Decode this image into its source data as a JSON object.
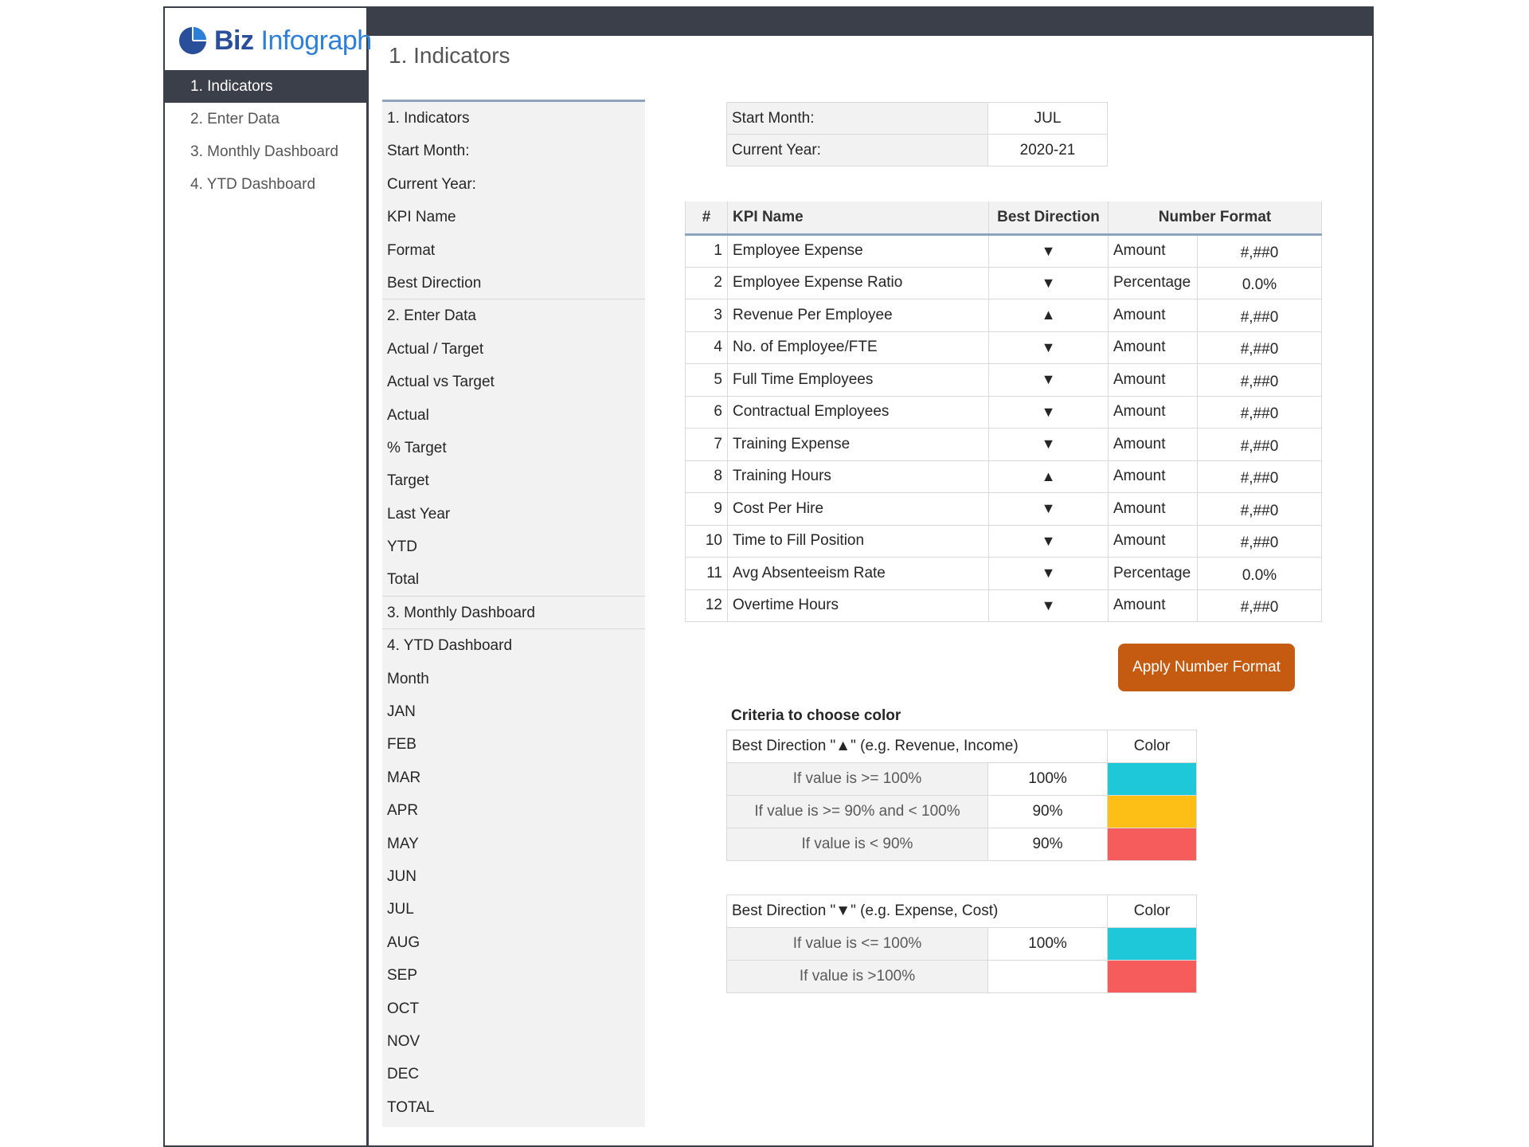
{
  "app": {
    "logo_biz": "Biz",
    "logo_infograph": "Infograph"
  },
  "sidebar": {
    "items": [
      {
        "label": "1. Indicators",
        "active": true
      },
      {
        "label": "2. Enter Data",
        "active": false
      },
      {
        "label": "3. Monthly Dashboard",
        "active": false
      },
      {
        "label": "4. YTD Dashboard",
        "active": false
      }
    ]
  },
  "page": {
    "title": "1. Indicators"
  },
  "indicator_list": [
    "1. Indicators",
    "Start Month:",
    "Current Year:",
    "KPI Name",
    "Format",
    "Best Direction",
    "2. Enter Data",
    "Actual / Target",
    "Actual vs Target",
    "Actual",
    "% Target",
    "Target",
    "Last Year",
    "YTD",
    "Total",
    "3. Monthly Dashboard",
    "4. YTD Dashboard",
    "Month",
    "JAN",
    "FEB",
    "MAR",
    "APR",
    "MAY",
    "JUN",
    "JUL",
    "AUG",
    "SEP",
    "OCT",
    "NOV",
    "DEC",
    "TOTAL"
  ],
  "settings": {
    "start_month_label": "Start Month:",
    "start_month_value": "JUL",
    "current_year_label": "Current Year:",
    "current_year_value": "2020-21"
  },
  "kpi_table": {
    "headers": {
      "num": "#",
      "name": "KPI Name",
      "direction": "Best Direction",
      "format": "Number Format"
    },
    "rows": [
      {
        "num": "1",
        "name": "Employee Expense",
        "direction": "▼",
        "format": "Amount",
        "pattern": "#,##0"
      },
      {
        "num": "2",
        "name": "Employee Expense Ratio",
        "direction": "▼",
        "format": "Percentage",
        "pattern": "0.0%"
      },
      {
        "num": "3",
        "name": "Revenue Per Employee",
        "direction": "▲",
        "format": "Amount",
        "pattern": "#,##0"
      },
      {
        "num": "4",
        "name": "No. of Employee/FTE",
        "direction": "▼",
        "format": "Amount",
        "pattern": "#,##0"
      },
      {
        "num": "5",
        "name": "Full Time Employees",
        "direction": "▼",
        "format": "Amount",
        "pattern": "#,##0"
      },
      {
        "num": "6",
        "name": "Contractual Employees",
        "direction": "▼",
        "format": "Amount",
        "pattern": "#,##0"
      },
      {
        "num": "7",
        "name": "Training Expense",
        "direction": "▼",
        "format": "Amount",
        "pattern": "#,##0"
      },
      {
        "num": "8",
        "name": "Training Hours",
        "direction": "▲",
        "format": "Amount",
        "pattern": "#,##0"
      },
      {
        "num": "9",
        "name": "Cost Per Hire",
        "direction": "▼",
        "format": "Amount",
        "pattern": "#,##0"
      },
      {
        "num": "10",
        "name": "Time to Fill Position",
        "direction": "▼",
        "format": "Amount",
        "pattern": "#,##0"
      },
      {
        "num": "11",
        "name": "Avg Absenteeism Rate",
        "direction": "▼",
        "format": "Percentage",
        "pattern": "0.0%"
      },
      {
        "num": "12",
        "name": "Overtime Hours",
        "direction": "▼",
        "format": "Amount",
        "pattern": "#,##0"
      }
    ]
  },
  "apply_button": {
    "label": "Apply Number Format"
  },
  "criteria": {
    "title": "Criteria to choose color",
    "up": {
      "header": "Best Direction \"▲\" (e.g. Revenue, Income)",
      "color_header": "Color",
      "rows": [
        {
          "condition": "If value is >= 100%",
          "value": "100%",
          "color": "#1fc8d8"
        },
        {
          "condition": "If value is >= 90% and < 100%",
          "value": "90%",
          "color": "#fdbf16"
        },
        {
          "condition": "If value is < 90%",
          "value": "90%",
          "color": "#f75c5c"
        }
      ]
    },
    "down": {
      "header": "Best Direction \"▼\" (e.g. Expense, Cost)",
      "color_header": "Color",
      "rows": [
        {
          "condition": "If value is <= 100%",
          "value": "100%",
          "color": "#1fc8d8"
        },
        {
          "condition": "If value is >100%",
          "value": "",
          "color": "#f75c5c"
        }
      ]
    }
  }
}
